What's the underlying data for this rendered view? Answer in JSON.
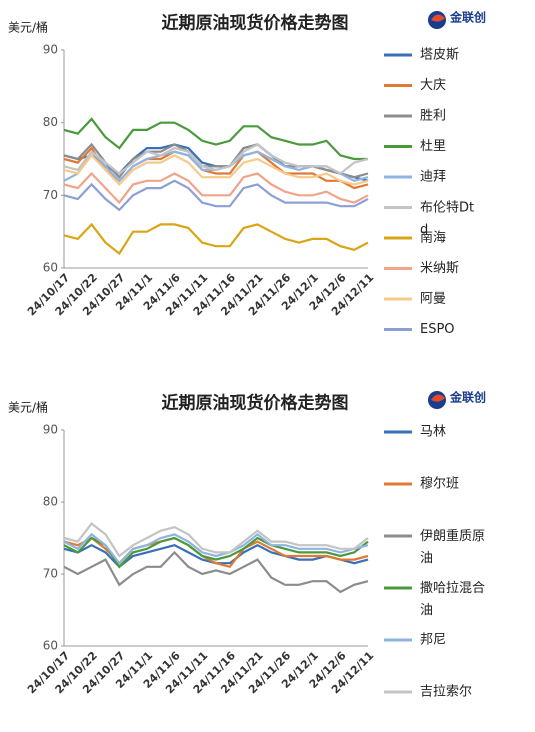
{
  "chart_data": [
    {
      "type": "line",
      "title": "近期原油现货价格走势图",
      "y_label": "美元/桶",
      "logo": "金联创",
      "categories": [
        "24/10/17",
        null,
        "24/10/22",
        null,
        "24/10/27",
        null,
        "24/11/1",
        null,
        "24/11/6",
        null,
        "24/11/11",
        null,
        "24/11/16",
        null,
        "24/11/21",
        null,
        "24/11/26",
        null,
        "24/12/1",
        null,
        "24/12/6",
        null,
        "24/12/11"
      ],
      "ylim": [
        60,
        90
      ],
      "yticks": [
        60,
        70,
        80,
        90
      ],
      "grid": false,
      "series": [
        {
          "name": "塔皮斯",
          "color": "#3a6fb7",
          "values": [
            75.5,
            75,
            75.5,
            74,
            73,
            75,
            76.5,
            76.5,
            77,
            76.5,
            74.5,
            74,
            74,
            76.5,
            77,
            75.5,
            74,
            74,
            74,
            73.5,
            73,
            72.5,
            72
          ]
        },
        {
          "name": "大庆",
          "color": "#e07a33",
          "values": [
            75,
            74.5,
            76.5,
            73.5,
            72,
            74,
            75,
            75,
            76,
            75.5,
            73.5,
            73,
            73,
            75.5,
            76,
            74.5,
            73,
            73,
            73,
            72,
            72,
            71,
            71.5
          ]
        },
        {
          "name": "胜利",
          "color": "#8c8c8c",
          "values": [
            75.5,
            75,
            77,
            74.5,
            72.5,
            75,
            76,
            76,
            77,
            76,
            74,
            74,
            74,
            76.5,
            77,
            75.5,
            74,
            74,
            74,
            73.5,
            73,
            72.5,
            73
          ]
        },
        {
          "name": "杜里",
          "color": "#4a9a3c",
          "values": [
            79,
            78.5,
            80.5,
            78,
            76.5,
            79,
            79,
            80,
            80,
            79,
            77.5,
            77,
            77.5,
            79.5,
            79.5,
            78,
            77.5,
            77,
            77,
            77.5,
            75.5,
            75,
            75
          ]
        },
        {
          "name": "迪拜",
          "color": "#8fb4e3",
          "values": [
            72,
            73,
            76,
            74,
            72,
            74,
            75,
            75.5,
            76,
            75.5,
            73.5,
            73.5,
            74,
            75.5,
            76,
            75,
            74,
            73.5,
            74,
            74,
            73,
            72,
            72.5
          ]
        },
        {
          "name": "布伦特Dtd",
          "color": "#c4c4c4",
          "values": [
            74,
            73.5,
            76,
            74.5,
            73,
            74.5,
            76,
            75.5,
            76.5,
            76,
            74,
            73.5,
            74,
            76,
            77,
            75.5,
            74.5,
            74,
            74,
            74,
            73,
            74.5,
            75
          ]
        },
        {
          "name": "南海",
          "color": "#d9a514",
          "values": [
            64.5,
            64,
            66,
            63.5,
            62,
            65,
            65,
            66,
            66,
            65.5,
            63.5,
            63,
            63,
            65.5,
            66,
            65,
            64,
            63.5,
            64,
            64,
            63,
            62.5,
            63.5
          ]
        },
        {
          "name": "米纳斯",
          "color": "#f0a48a",
          "values": [
            71.5,
            71,
            73,
            71,
            69,
            71.5,
            72,
            72,
            73,
            72,
            70,
            70,
            70,
            72.5,
            73,
            71.5,
            70.5,
            70,
            70,
            70.5,
            69.5,
            69,
            70
          ]
        },
        {
          "name": "阿曼",
          "color": "#f7c98a",
          "values": [
            73.5,
            73,
            75.5,
            73.5,
            71.5,
            73.5,
            74.5,
            74.5,
            75.5,
            74.5,
            72.5,
            72.5,
            72.5,
            74.5,
            75,
            74,
            73,
            72.5,
            72.5,
            73,
            72,
            71.5,
            72
          ]
        },
        {
          "name": "ESPO",
          "color": "#8e9fd6",
          "values": [
            70,
            69.5,
            71.5,
            69.5,
            68,
            70,
            71,
            71,
            72,
            71,
            69,
            68.5,
            68.5,
            71,
            71.5,
            70,
            69,
            69,
            69,
            69,
            68.5,
            68.5,
            69.5
          ]
        }
      ]
    },
    {
      "type": "line",
      "title": "近期原油现货价格走势图",
      "y_label": "美元/桶",
      "logo": "金联创",
      "categories": [
        "24/10/17",
        null,
        "24/10/22",
        null,
        "24/10/27",
        null,
        "24/11/1",
        null,
        "24/11/6",
        null,
        "24/11/11",
        null,
        "24/11/16",
        null,
        "24/11/21",
        null,
        "24/11/26",
        null,
        "24/12/1",
        null,
        "24/12/6",
        null,
        "24/12/11"
      ],
      "ylim": [
        60,
        90
      ],
      "yticks": [
        60,
        70,
        80,
        90
      ],
      "grid": false,
      "series": [
        {
          "name": "马林",
          "color": "#3a6fb7",
          "values": [
            73.5,
            73,
            74,
            73,
            71,
            72.5,
            73,
            73.5,
            74,
            73,
            72,
            71.5,
            71.5,
            73,
            74,
            73,
            72.5,
            72,
            72,
            72.5,
            72,
            71.5,
            72
          ]
        },
        {
          "name": "穆尔班",
          "color": "#e07a33",
          "values": [
            74.5,
            74,
            75,
            73.5,
            71.5,
            73.5,
            74,
            74.5,
            75,
            74,
            72.5,
            71.5,
            71,
            73.5,
            74.5,
            73.5,
            72.5,
            72.5,
            72.5,
            72.5,
            72,
            72,
            72.5
          ]
        },
        {
          "name": "伊朗重质原油",
          "color": "#8c8c8c",
          "values": [
            71,
            70,
            71,
            72,
            68.5,
            70,
            71,
            71,
            73,
            71,
            70,
            70.5,
            70,
            71,
            72,
            69.5,
            68.5,
            68.5,
            69,
            69,
            67.5,
            68.5,
            69
          ]
        },
        {
          "name": "撒哈拉混合油",
          "color": "#4a9a3c",
          "values": [
            74,
            73,
            75,
            74,
            71,
            73,
            73.5,
            74.5,
            75,
            74,
            72.5,
            72,
            72.5,
            73.5,
            75,
            74,
            73.5,
            73,
            73,
            73,
            72.5,
            73,
            74.5
          ]
        },
        {
          "name": "邦尼",
          "color": "#8fb4e3",
          "values": [
            74.5,
            73.5,
            75.5,
            74,
            71.5,
            73.5,
            74,
            75,
            75.5,
            74.5,
            73,
            72.5,
            73,
            74,
            75.5,
            74,
            74,
            73.5,
            73.5,
            73.5,
            73,
            73.5,
            74
          ]
        },
        {
          "name": "吉拉索尔",
          "color": "#c4c4c4",
          "values": [
            75,
            74.5,
            77,
            75.5,
            72.5,
            74,
            75,
            76,
            76.5,
            75.5,
            73.5,
            73,
            73,
            74.5,
            76,
            74.5,
            74.5,
            74,
            74,
            74,
            73.5,
            73.5,
            75
          ]
        }
      ]
    }
  ]
}
